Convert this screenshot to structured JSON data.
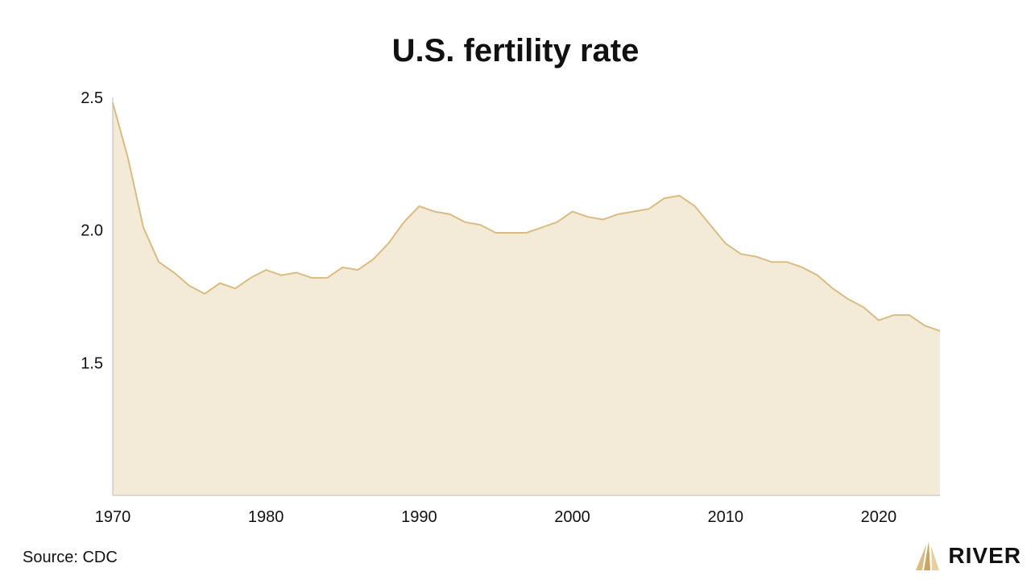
{
  "chart_data": {
    "type": "area",
    "title": "U.S. fertility rate",
    "xlabel": "",
    "ylabel": "",
    "xlim": [
      1970,
      2024
    ],
    "ylim": [
      1.0,
      2.5
    ],
    "x_ticks": [
      "1970",
      "1980",
      "1990",
      "2000",
      "2010",
      "2020"
    ],
    "y_ticks": [
      "1.5",
      "2.0",
      "2.5"
    ],
    "grid": false,
    "legend": "none",
    "colors": {
      "line": "#D9BC82",
      "fill": "#F4EAD8",
      "axis": "#BBBBBB"
    },
    "series": [
      {
        "x": [
          1970,
          1971,
          1972,
          1973,
          1974,
          1975,
          1976,
          1977,
          1978,
          1979,
          1980,
          1981,
          1982,
          1983,
          1984,
          1985,
          1986,
          1987,
          1988,
          1989,
          1990,
          1991,
          1992,
          1993,
          1994,
          1995,
          1996,
          1997,
          1998,
          1999,
          2000,
          2001,
          2002,
          2003,
          2004,
          2005,
          2006,
          2007,
          2008,
          2009,
          2010,
          2011,
          2012,
          2013,
          2014,
          2015,
          2016,
          2017,
          2018,
          2019,
          2020,
          2021,
          2022,
          2023,
          2024
        ],
        "y": [
          2.48,
          2.27,
          2.01,
          1.88,
          1.84,
          1.79,
          1.76,
          1.8,
          1.78,
          1.82,
          1.85,
          1.83,
          1.84,
          1.82,
          1.82,
          1.86,
          1.85,
          1.89,
          1.95,
          2.03,
          2.09,
          2.07,
          2.06,
          2.03,
          2.02,
          1.99,
          1.99,
          1.99,
          2.01,
          2.03,
          2.07,
          2.05,
          2.04,
          2.06,
          2.07,
          2.08,
          2.12,
          2.13,
          2.09,
          2.02,
          1.95,
          1.91,
          1.9,
          1.88,
          1.88,
          1.86,
          1.83,
          1.78,
          1.74,
          1.71,
          1.66,
          1.68,
          1.68,
          1.64,
          1.62
        ]
      }
    ]
  },
  "footer": {
    "source": "Source: CDC",
    "brand": "RIVER"
  }
}
